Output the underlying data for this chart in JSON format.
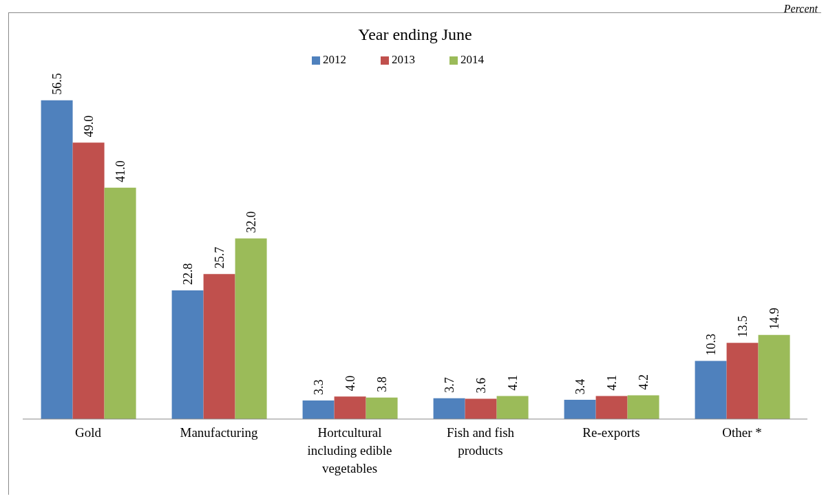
{
  "chart_data": {
    "type": "bar",
    "title": "Year ending  June",
    "annotations": [
      "Percent"
    ],
    "categories": [
      "Gold",
      "Manufacturing",
      "Hortcultural including edible vegetables",
      "Fish and fish products",
      "Re-exports",
      "Other *"
    ],
    "series": [
      {
        "name": "2012",
        "color": "#4f81bd",
        "values": [
          56.5,
          22.8,
          3.3,
          3.7,
          3.4,
          10.3
        ],
        "value_labels": [
          "56.5",
          "22.8",
          "3.3",
          "3.7",
          "3.4",
          "10.3"
        ]
      },
      {
        "name": "2013",
        "color": "#c0504d",
        "values": [
          49.0,
          25.7,
          4.0,
          3.6,
          4.1,
          13.5
        ],
        "value_labels": [
          "49.0",
          "25.7",
          "4.0",
          "3.6",
          "4.1",
          "13.5"
        ]
      },
      {
        "name": "2014",
        "color": "#9bbb59",
        "values": [
          41.0,
          32.0,
          3.8,
          4.1,
          4.2,
          14.9
        ],
        "value_labels": [
          "41.0",
          "32.0",
          "3.8",
          "4.1",
          "4.2",
          "14.9"
        ]
      }
    ],
    "legend": "top",
    "grid": false
  }
}
